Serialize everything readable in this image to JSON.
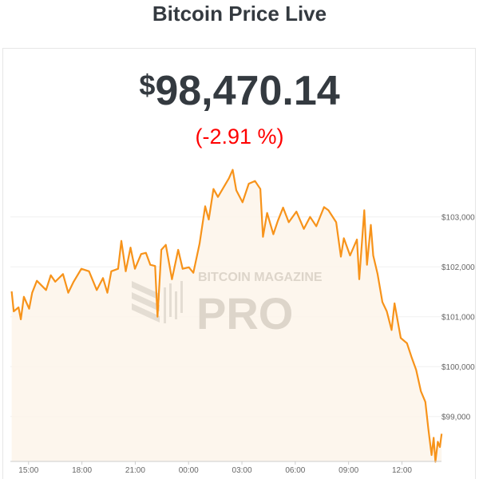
{
  "header": {
    "title": "Bitcoin Price Live"
  },
  "ticker": {
    "currency_symbol": "$",
    "price": "98,470.14",
    "change": "(-2.91 %)"
  },
  "watermark": {
    "line1": "BITCOIN MAGAZINE",
    "line2": "PRO"
  },
  "colors": {
    "line": "#f7931a",
    "fill": "#fdf5ea",
    "change_negative": "#ff0000",
    "text": "#343a40"
  },
  "chart_data": {
    "type": "area",
    "title": "",
    "xlabel": "",
    "ylabel": "",
    "grid": true,
    "ylim": [
      98100,
      104200
    ],
    "x_ticks": [
      "15:00",
      "18:00",
      "21:00",
      "00:00",
      "03:00",
      "06:00",
      "09:00",
      "12:00"
    ],
    "y_ticks": [
      {
        "value": 99000,
        "label": "$99,000"
      },
      {
        "value": 100000,
        "label": "$100,000"
      },
      {
        "value": 101000,
        "label": "$101,000"
      },
      {
        "value": 102000,
        "label": "$102,000"
      },
      {
        "value": 103000,
        "label": "$103,000"
      }
    ],
    "x": [
      "14:03",
      "14:10",
      "14:26",
      "14:34",
      "14:44",
      "15:02",
      "15:12",
      "15:28",
      "15:59",
      "16:15",
      "16:30",
      "16:56",
      "17:14",
      "17:32",
      "17:58",
      "18:24",
      "18:50",
      "19:11",
      "19:26",
      "19:39",
      "20:02",
      "20:13",
      "20:28",
      "20:44",
      "20:59",
      "21:20",
      "21:36",
      "21:51",
      "22:07",
      "22:15",
      "22:28",
      "22:43",
      "23:04",
      "23:25",
      "23:40",
      "00:01",
      "00:16",
      "00:37",
      "00:56",
      "01:08",
      "01:24",
      "01:39",
      "02:00",
      "02:16",
      "02:29",
      "02:41",
      "03:02",
      "03:23",
      "03:44",
      "04:02",
      "04:11",
      "04:25",
      "04:46",
      "05:01",
      "05:19",
      "05:38",
      "06:04",
      "06:29",
      "06:50",
      "07:11",
      "07:37",
      "07:52",
      "08:18",
      "08:34",
      "08:44",
      "09:05",
      "09:28",
      "09:36",
      "09:53",
      "10:02",
      "10:15",
      "10:23",
      "10:38",
      "10:54",
      "11:09",
      "11:25",
      "11:35",
      "11:56",
      "12:17",
      "12:32",
      "12:48",
      "13:04",
      "13:19",
      "13:29",
      "13:40",
      "13:47",
      "13:53",
      "14:01",
      "14:08",
      "14:14"
    ],
    "values": [
      101507,
      101107,
      101187,
      100947,
      101400,
      101160,
      101480,
      101720,
      101535,
      101830,
      101700,
      101855,
      101480,
      101700,
      101960,
      101910,
      101535,
      101775,
      101480,
      101910,
      101960,
      102520,
      101910,
      102385,
      101960,
      102256,
      102280,
      102040,
      102016,
      101000,
      102340,
      102440,
      101750,
      102340,
      101960,
      101990,
      101880,
      102465,
      103213,
      102947,
      103560,
      103400,
      103613,
      103773,
      103944,
      103533,
      103293,
      103666,
      103720,
      103560,
      102600,
      103080,
      102653,
      102920,
      103187,
      102893,
      103107,
      102760,
      103000,
      102813,
      103197,
      103133,
      102893,
      102203,
      102573,
      102227,
      102547,
      101750,
      103133,
      102040,
      102840,
      102227,
      101853,
      101293,
      101107,
      100733,
      101267,
      100573,
      100467,
      100200,
      99933,
      99507,
      99293,
      98760,
      98227,
      98573,
      98093,
      98493,
      98387,
      98653
    ]
  }
}
